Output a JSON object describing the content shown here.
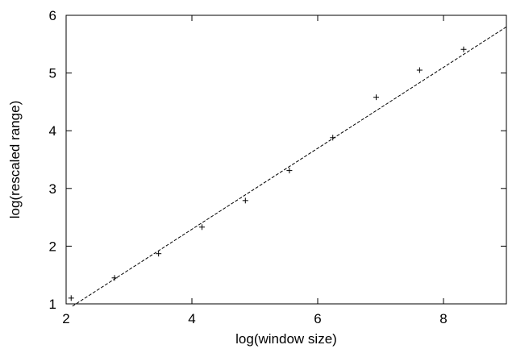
{
  "chart_data": {
    "type": "scatter",
    "xlabel": "log(window size)",
    "ylabel": "log(rescaled range)",
    "xlim": [
      2,
      9
    ],
    "ylim": [
      1,
      6
    ],
    "x_ticks": [
      2,
      4,
      6,
      8
    ],
    "y_ticks": [
      1,
      2,
      3,
      4,
      5,
      6
    ],
    "grid": false,
    "legend": "none",
    "series": [
      {
        "kind": "points",
        "marker": "+",
        "x": [
          2.08,
          2.77,
          3.47,
          4.16,
          4.85,
          5.55,
          6.24,
          6.93,
          7.62,
          8.32
        ],
        "y": [
          1.1,
          1.45,
          1.87,
          2.33,
          2.79,
          3.31,
          3.88,
          4.58,
          5.05,
          5.41
        ]
      },
      {
        "kind": "fit-line",
        "style": "dashed",
        "x": [
          2.1,
          9.0
        ],
        "y": [
          0.96,
          5.8
        ]
      }
    ]
  }
}
